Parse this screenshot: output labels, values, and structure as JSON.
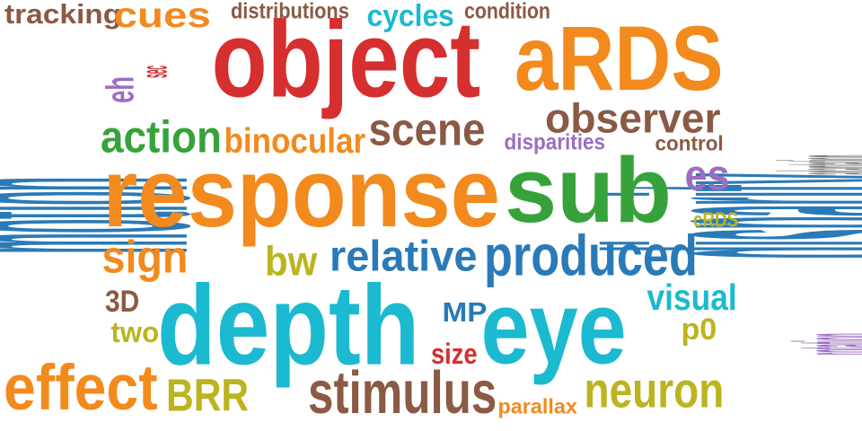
{
  "colors": {
    "orange": "#f28a1e",
    "blue": "#2a7ab8",
    "red": "#d62f2f",
    "green": "#36a33a",
    "brown": "#8a5a44",
    "purple": "#9b6dc4",
    "cyan": "#1bbad0",
    "olive": "#bbb41f",
    "gray": "#7b7b7b"
  },
  "words": [
    {
      "text": "tracking",
      "color": "#8a5a44"
    },
    {
      "text": "cues",
      "color": "#f28a1e"
    },
    {
      "text": "distributions",
      "color": "#8a5a44"
    },
    {
      "text": "cycles",
      "color": "#1bbad0"
    },
    {
      "text": "condition",
      "color": "#8a5a44"
    },
    {
      "text": "object",
      "color": "#d62f2f"
    },
    {
      "text": "aRDS",
      "color": "#f28a1e"
    },
    {
      "text": "disparity",
      "color": "#2a7ab8"
    },
    {
      "text": "motion",
      "color": "#2a7ab8"
    },
    {
      "text": "eh",
      "color": "#9b6dc4"
    },
    {
      "text": "sec",
      "color": "#d62f2f"
    },
    {
      "text": "observer",
      "color": "#8a5a44"
    },
    {
      "text": "action",
      "color": "#36a33a"
    },
    {
      "text": "binocular",
      "color": "#f28a1e"
    },
    {
      "text": "scene",
      "color": "#8a5a44"
    },
    {
      "text": "disparities",
      "color": "#9b6dc4"
    },
    {
      "text": "control",
      "color": "#8a5a44"
    },
    {
      "text": "adaptation",
      "color": "#7b7b7b"
    },
    {
      "text": "response",
      "color": "#f28a1e"
    },
    {
      "text": "sub",
      "color": "#36a33a"
    },
    {
      "text": "es",
      "color": "#9b6dc4"
    },
    {
      "text": "cRDS",
      "color": "#bbb41f"
    },
    {
      "text": "sign",
      "color": "#f28a1e"
    },
    {
      "text": "bw",
      "color": "#bbb41f"
    },
    {
      "text": "relative",
      "color": "#2a7ab8"
    },
    {
      "text": "produced",
      "color": "#2a7ab8"
    },
    {
      "text": "3D",
      "color": "#8a5a44"
    },
    {
      "text": "depth",
      "color": "#1bbad0"
    },
    {
      "text": "MP",
      "color": "#2a7ab8"
    },
    {
      "text": "eye",
      "color": "#1bbad0"
    },
    {
      "text": "visual",
      "color": "#1bbad0"
    },
    {
      "text": "p0",
      "color": "#bbb41f"
    },
    {
      "text": "two",
      "color": "#bbb41f"
    },
    {
      "text": "size",
      "color": "#d62f2f"
    },
    {
      "text": "rotation",
      "color": "#9b6dc4"
    },
    {
      "text": "effect",
      "color": "#f28a1e"
    },
    {
      "text": "BRR",
      "color": "#bbb41f"
    },
    {
      "text": "stimulus",
      "color": "#8a5a44"
    },
    {
      "text": "parallax",
      "color": "#f28a1e"
    },
    {
      "text": "neuron",
      "color": "#bbb41f"
    }
  ]
}
